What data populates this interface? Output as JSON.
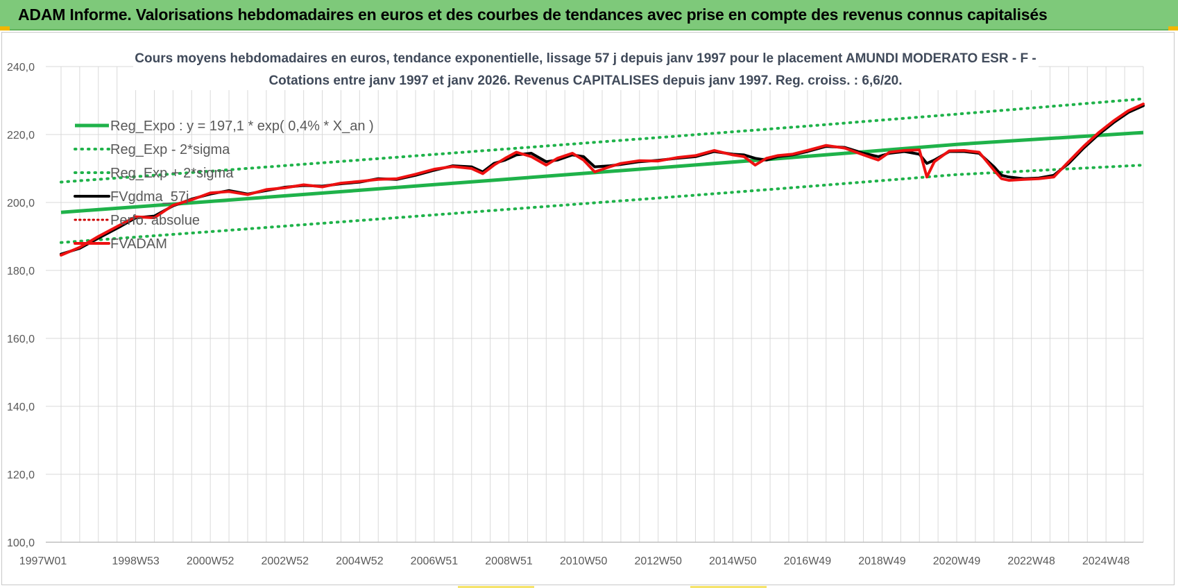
{
  "header": {
    "title": "ADAM Informe. Valorisations hebdomadaires en euros et des courbes de tendances avec prise en compte des revenus connus capitalisés"
  },
  "colors": {
    "header_bg": "#7ec97a",
    "reg_expo": "#1fb24a",
    "fvgdma": "#000000",
    "fvadam": "#ee1111",
    "perfo": "#cc0000",
    "grid": "#d9d9d9"
  },
  "chart_data": {
    "type": "line",
    "title_line1": "Cours moyens hebdomadaires en euros, tendance exponentielle, lissage 57 j depuis janv 1997  pour le  placement AMUNDI MODERATO ESR - F -",
    "title_line2": "Cotations entre janv 1997 et janv 2026. Revenus CAPITALISES depuis janv 1997. Reg. croiss. : 6,6/20.",
    "x_tick_labels": [
      "1997W01",
      "1998W53",
      "2000W52",
      "2002W52",
      "2004W52",
      "2006W51",
      "2008W51",
      "2010W50",
      "2012W50",
      "2014W50",
      "2016W49",
      "2018W49",
      "2020W49",
      "2022W48",
      "2024W48"
    ],
    "x_tick_years": [
      1997,
      1999,
      2001,
      2003,
      2005,
      2007,
      2009,
      2011,
      2013,
      2015,
      2017,
      2019,
      2021,
      2023,
      2025
    ],
    "xlim": [
      1997.0,
      2026.0
    ],
    "y_tick_labels": [
      "240,0",
      "220,0",
      "200,0",
      "180,0",
      "160,0",
      "140,0",
      "120,0",
      "100,0"
    ],
    "y_tick_values": [
      240,
      220,
      200,
      180,
      160,
      140,
      120,
      100
    ],
    "ylim": [
      100,
      240
    ],
    "grid": true,
    "legend_position": "top-left",
    "legend": [
      {
        "key": "reg_expo",
        "label": "Reg_Expo : y = 197,1 * exp( 0,4% *  X_an )"
      },
      {
        "key": "reg_minus",
        "label": "Reg_Exp - 2*sigma"
      },
      {
        "key": "reg_plus",
        "label": "Reg_Exp + 2*sigma"
      },
      {
        "key": "fvgdma",
        "label": "FVgdma_57j"
      },
      {
        "key": "perfo",
        "label": "Perfo. absolue"
      },
      {
        "key": "fvadam",
        "label": "FVADAM"
      }
    ],
    "series": [
      {
        "name": "Reg_Expo : y = 197,1 * exp( 0,4% *  X_an )",
        "key": "reg_expo",
        "x": [
          1997.0,
          2001.0,
          2005.0,
          2009.0,
          2013.0,
          2017.0,
          2021.0,
          2026.0
        ],
        "values": [
          197.1,
          200.3,
          203.6,
          206.9,
          210.2,
          213.6,
          217.1,
          220.6
        ]
      },
      {
        "name": "Reg_Exp + 2*sigma",
        "key": "reg_plus",
        "x": [
          1997.0,
          2001.0,
          2005.0,
          2009.0,
          2013.0,
          2017.0,
          2021.0,
          2026.0
        ],
        "values": [
          206.0,
          209.2,
          212.5,
          215.8,
          219.1,
          222.5,
          226.0,
          230.5
        ]
      },
      {
        "name": "Reg_Exp - 2*sigma",
        "key": "reg_minus",
        "x": [
          1997.0,
          2001.0,
          2005.0,
          2009.0,
          2013.0,
          2017.0,
          2021.0,
          2026.0
        ],
        "values": [
          188.2,
          191.4,
          194.7,
          198.0,
          201.3,
          204.7,
          208.2,
          211.0
        ]
      },
      {
        "name": "FVgdma_57j",
        "key": "fvgdma",
        "x": [
          1997.0,
          1997.5,
          1998.0,
          1998.6,
          1999.0,
          1999.5,
          2000.0,
          2000.5,
          2001.0,
          2001.5,
          2002.0,
          2002.5,
          2003.0,
          2003.5,
          2004.0,
          2004.5,
          2005.0,
          2005.5,
          2006.0,
          2006.5,
          2007.0,
          2007.5,
          2008.0,
          2008.3,
          2008.6,
          2008.9,
          2009.2,
          2009.6,
          2010.0,
          2010.3,
          2010.7,
          2011.0,
          2011.3,
          2011.7,
          2012.0,
          2012.5,
          2013.0,
          2013.5,
          2014.0,
          2014.5,
          2015.0,
          2015.3,
          2015.6,
          2015.9,
          2016.2,
          2016.6,
          2017.0,
          2017.5,
          2018.0,
          2018.5,
          2018.9,
          2019.2,
          2019.6,
          2020.0,
          2020.2,
          2020.4,
          2020.8,
          2021.2,
          2021.6,
          2022.0,
          2022.2,
          2022.4,
          2022.8,
          2023.2,
          2023.6,
          2024.0,
          2024.4,
          2024.8,
          2025.2,
          2025.6,
          2026.0
        ],
        "values": [
          184.8,
          186.5,
          189.5,
          193.0,
          195.5,
          196.0,
          199.0,
          201.0,
          202.5,
          203.5,
          202.5,
          203.5,
          204.5,
          205.0,
          204.8,
          205.5,
          206.0,
          207.0,
          206.8,
          208.0,
          209.5,
          210.8,
          210.5,
          209.0,
          211.5,
          212.5,
          214.0,
          214.5,
          212.0,
          212.5,
          214.0,
          213.5,
          210.5,
          210.8,
          211.2,
          212.0,
          212.4,
          213.0,
          213.5,
          215.0,
          214.2,
          214.0,
          213.0,
          212.5,
          213.5,
          214.0,
          215.0,
          216.5,
          216.2,
          214.5,
          213.5,
          214.5,
          215.0,
          214.2,
          211.5,
          212.5,
          215.0,
          215.0,
          214.5,
          210.5,
          208.0,
          207.5,
          207.0,
          207.2,
          208.0,
          211.5,
          216.0,
          220.0,
          223.5,
          226.5,
          228.5
        ]
      },
      {
        "name": "FVADAM",
        "key": "fvadam",
        "x": [
          1997.0,
          1997.5,
          1998.0,
          1998.6,
          1999.0,
          1999.5,
          2000.0,
          2000.5,
          2001.0,
          2001.5,
          2002.0,
          2002.5,
          2003.0,
          2003.5,
          2004.0,
          2004.5,
          2005.0,
          2005.5,
          2006.0,
          2006.5,
          2007.0,
          2007.5,
          2008.0,
          2008.3,
          2008.6,
          2008.9,
          2009.2,
          2009.6,
          2010.0,
          2010.3,
          2010.7,
          2011.0,
          2011.3,
          2011.7,
          2012.0,
          2012.5,
          2013.0,
          2013.5,
          2014.0,
          2014.5,
          2015.0,
          2015.3,
          2015.6,
          2015.9,
          2016.2,
          2016.6,
          2017.0,
          2017.5,
          2018.0,
          2018.5,
          2018.9,
          2019.2,
          2019.6,
          2020.0,
          2020.2,
          2020.4,
          2020.8,
          2021.2,
          2021.6,
          2022.0,
          2022.2,
          2022.4,
          2022.8,
          2023.2,
          2023.6,
          2024.0,
          2024.4,
          2024.8,
          2025.2,
          2025.6,
          2026.0
        ],
        "values": [
          184.5,
          186.8,
          190.0,
          193.5,
          195.8,
          195.5,
          199.2,
          200.8,
          202.8,
          203.2,
          202.3,
          203.8,
          204.3,
          205.2,
          204.6,
          205.7,
          206.2,
          206.8,
          207.0,
          208.3,
          209.8,
          210.6,
          210.0,
          208.5,
          211.0,
          213.0,
          214.8,
          213.5,
          211.0,
          213.0,
          214.5,
          212.5,
          209.0,
          210.5,
          211.5,
          212.3,
          212.2,
          213.2,
          213.8,
          215.3,
          214.0,
          213.5,
          211.0,
          213.0,
          213.8,
          214.2,
          215.3,
          216.8,
          216.0,
          214.0,
          212.5,
          214.8,
          215.3,
          215.5,
          207.5,
          212.0,
          215.2,
          215.3,
          214.8,
          209.5,
          207.0,
          206.5,
          206.8,
          207.0,
          207.5,
          212.0,
          216.5,
          220.5,
          224.0,
          227.0,
          229.0
        ]
      }
    ]
  }
}
